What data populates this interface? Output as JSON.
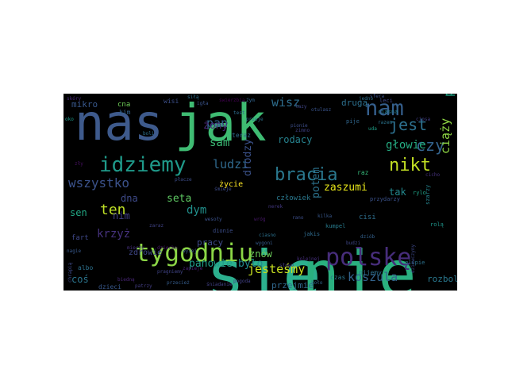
{
  "words": [
    {
      "text": "się",
      "color": "#2cb08e",
      "rot": false
    },
    {
      "text": "nie",
      "color": "#2ab07f",
      "rot": false
    },
    {
      "text": "jak",
      "color": "#3fbc73",
      "rot": false
    },
    {
      "text": "nas",
      "color": "#3e5a8c",
      "rot": false
    },
    {
      "text": "tygodniu",
      "color": "#8cd646",
      "rot": false
    },
    {
      "text": "polskę",
      "color": "#472d7b",
      "rot": false
    },
    {
      "text": "idziemy",
      "color": "#1f9a8a",
      "rot": false
    },
    {
      "text": "nam",
      "color": "#355f8d",
      "rot": false
    },
    {
      "text": "bracia",
      "color": "#2a788e",
      "rot": false
    },
    {
      "text": "nikt",
      "color": "#c2df23",
      "rot": false
    },
    {
      "text": "jest",
      "color": "#2d708e",
      "rot": false
    },
    {
      "text": "czy",
      "color": "#33638d",
      "rot": false
    },
    {
      "text": "ten",
      "color": "#bddf26",
      "rot": false
    },
    {
      "text": "wszystko",
      "color": "#3b528b",
      "rot": false
    },
    {
      "text": "pierwsza",
      "color": "#20a386",
      "rot": true
    },
    {
      "text": "ciąży",
      "color": "#8fd744",
      "rot": true
    },
    {
      "text": "koszula",
      "color": "#33638d",
      "rot": false
    },
    {
      "text": "jesteśmy",
      "color": "#c8e020",
      "rot": false
    },
    {
      "text": "pan",
      "color": "#31678e",
      "rot": false
    },
    {
      "text": "wisz",
      "color": "#2e6e8e",
      "rot": false
    },
    {
      "text": "ludzi",
      "color": "#306a8e",
      "rot": false
    },
    {
      "text": "sam",
      "color": "#3bbb75",
      "rot": false
    },
    {
      "text": "głowie",
      "color": "#25ac82",
      "rot": false
    },
    {
      "text": "dym",
      "color": "#21908c",
      "rot": false
    },
    {
      "text": "krzyż",
      "color": "#46327e",
      "rot": false
    },
    {
      "text": "drodzy",
      "color": "#3b528b",
      "rot": true
    },
    {
      "text": "potem",
      "color": "#2c738e",
      "rot": true
    },
    {
      "text": "panowie",
      "color": "#1f9e89",
      "rot": false
    },
    {
      "text": "było",
      "color": "#228b8d",
      "rot": false
    },
    {
      "text": "zaszumi",
      "color": "#e5e419",
      "rot": false
    },
    {
      "text": "seta",
      "color": "#5ec962",
      "rot": false
    },
    {
      "text": "dna",
      "color": "#3e4a89",
      "rot": false
    },
    {
      "text": "nim",
      "color": "#424086",
      "rot": false
    },
    {
      "text": "sen",
      "color": "#22a884",
      "rot": false
    },
    {
      "text": "żony",
      "color": "#482878",
      "rot": false
    },
    {
      "text": "rodacy",
      "color": "#26828e",
      "rot": false
    },
    {
      "text": "tak",
      "color": "#23898e",
      "rot": false
    },
    {
      "text": "coś",
      "color": "#2b758e",
      "rot": false
    },
    {
      "text": "znów",
      "color": "#6ccd5a",
      "rot": false
    },
    {
      "text": "rozbolą",
      "color": "#2a788e",
      "rot": false
    },
    {
      "text": "mikro",
      "color": "#38588c",
      "rot": false
    },
    {
      "text": "pracy",
      "color": "#3e4a89",
      "rot": false
    },
    {
      "text": "przejmie",
      "color": "#31688e",
      "rot": false
    },
    {
      "text": "drugą",
      "color": "#2d708e",
      "rot": false
    },
    {
      "text": "życie",
      "color": "#fde725",
      "rot": false
    },
    {
      "text": "zdrowie",
      "color": "#3f4788",
      "rot": false
    },
    {
      "text": "człowiek",
      "color": "#2a788e",
      "rot": false
    },
    {
      "text": "cisi",
      "color": "#2e6f8e",
      "rot": false
    },
    {
      "text": "cna",
      "color": "#6ece58",
      "rot": false
    },
    {
      "text": "fart",
      "color": "#3f4889",
      "rot": false
    },
    {
      "text": "albo",
      "color": "#2d718e",
      "rot": false
    },
    {
      "text": "dzieci",
      "color": "#38588c",
      "rot": false
    },
    {
      "text": "teraz",
      "color": "#2f6c8e",
      "rot": false
    },
    {
      "text": "wisi",
      "color": "#3c4f8a",
      "rot": false
    },
    {
      "text": "raz",
      "color": "#35b779",
      "rot": false
    },
    {
      "text": "pije",
      "color": "#31678e",
      "rot": false
    },
    {
      "text": "przydarzy",
      "color": "#3b528b",
      "rot": false
    },
    {
      "text": "rolą",
      "color": "#1f958b",
      "rot": false
    },
    {
      "text": "glupie",
      "color": "#2c728e",
      "rot": false
    },
    {
      "text": "jakis",
      "color": "#2f6b8e",
      "rot": false
    },
    {
      "text": "leci",
      "color": "#3f4788",
      "rot": false
    },
    {
      "text": "ciasna",
      "color": "#26818e",
      "rot": false
    },
    {
      "text": "rylo",
      "color": "#20a386",
      "rot": false
    },
    {
      "text": "kim",
      "color": "#33638d",
      "rot": false
    },
    {
      "text": "czas",
      "color": "#2b748e",
      "rot": false
    },
    {
      "text": "dionie",
      "color": "#3d4e8a",
      "rot": false
    },
    {
      "text": "pijemy",
      "color": "#2e6f8e",
      "rot": false
    },
    {
      "text": "szarzy",
      "color": "#25848e",
      "rot": true
    },
    {
      "text": "kumpel",
      "color": "#287c8e",
      "rot": false
    },
    {
      "text": "sfera",
      "color": "#3b528b",
      "rot": false
    },
    {
      "text": "zły",
      "color": "#471164",
      "rot": false
    },
    {
      "text": "oko",
      "color": "#1e9b8a",
      "rot": false
    },
    {
      "text": "lazy",
      "color": "#404688",
      "rot": false
    },
    {
      "text": "jedno",
      "color": "#2e6f8e",
      "rot": false
    },
    {
      "text": "razem",
      "color": "#2b758e",
      "rot": false
    },
    {
      "text": "uda",
      "color": "#1fa188",
      "rot": false
    },
    {
      "text": "wyżej",
      "color": "#3a548c",
      "rot": false
    },
    {
      "text": "dziób",
      "color": "#34618d",
      "rot": false
    },
    {
      "text": "budzi",
      "color": "#3f4788",
      "rot": false
    },
    {
      "text": "ciasno",
      "color": "#2c718e",
      "rot": false
    },
    {
      "text": "śmieje",
      "color": "#3e4c8a",
      "rot": false
    },
    {
      "text": "przeje",
      "color": "#2b758e",
      "rot": false
    },
    {
      "text": "pionie",
      "color": "#3d4e8a",
      "rot": false
    },
    {
      "text": "wygoni",
      "color": "#365c8d",
      "rot": false
    },
    {
      "text": "test",
      "color": "#2f6c8e",
      "rot": false
    },
    {
      "text": "źym",
      "color": "#32658e",
      "rot": false
    },
    {
      "text": "otulasz",
      "color": "#3a548c",
      "rot": false
    },
    {
      "text": "swierzbią",
      "color": "#440154",
      "rot": false
    },
    {
      "text": "mierzy",
      "color": "#46317e",
      "rot": false
    },
    {
      "text": "biedną",
      "color": "#482677",
      "rot": false
    },
    {
      "text": "nagie",
      "color": "#38598c",
      "rot": false
    },
    {
      "text": "chrapią",
      "color": "#3e4a89",
      "rot": true
    },
    {
      "text": "pragniemy",
      "color": "#414487",
      "rot": false
    },
    {
      "text": "przecież",
      "color": "#365d8d",
      "rot": false
    },
    {
      "text": "śniadanie",
      "color": "#424186",
      "rot": false
    },
    {
      "text": "ciosa",
      "color": "#433e85",
      "rot": false
    },
    {
      "text": "dziewczyny",
      "color": "#3e4989",
      "rot": true
    },
    {
      "text": "pogoda",
      "color": "#424086",
      "rot": false
    },
    {
      "text": "boli",
      "color": "#2d708e",
      "rot": false
    },
    {
      "text": "nerek",
      "color": "#443983",
      "rot": false
    },
    {
      "text": "zaraz",
      "color": "#414487",
      "rot": false
    },
    {
      "text": "zapieje",
      "color": "#482173",
      "rot": false
    },
    {
      "text": "wesoły",
      "color": "#3b518b",
      "rot": false
    },
    {
      "text": "kilka",
      "color": "#38588c",
      "rot": false
    },
    {
      "text": "kolejnej",
      "color": "#46307e",
      "rot": false
    },
    {
      "text": "dziecko",
      "color": "#48196b",
      "rot": false
    },
    {
      "text": "siłą",
      "color": "#2d708e",
      "rot": false
    },
    {
      "text": "igła",
      "color": "#3a538b",
      "rot": false
    },
    {
      "text": "patrzy",
      "color": "#433d84",
      "rot": false
    },
    {
      "text": "zimno",
      "color": "#414287",
      "rot": false
    },
    {
      "text": "koło",
      "color": "#31668e",
      "rot": false
    },
    {
      "text": "płacze",
      "color": "#3d4d8a",
      "rot": false
    },
    {
      "text": "słowo",
      "color": "#453882",
      "rot": false
    },
    {
      "text": "wróg",
      "color": "#48186a",
      "rot": false
    },
    {
      "text": "cicho",
      "color": "#46337f",
      "rot": false
    },
    {
      "text": "rano",
      "color": "#3d4e8a",
      "rot": false
    },
    {
      "text": "skóry",
      "color": "#482979",
      "rot": false
    }
  ]
}
